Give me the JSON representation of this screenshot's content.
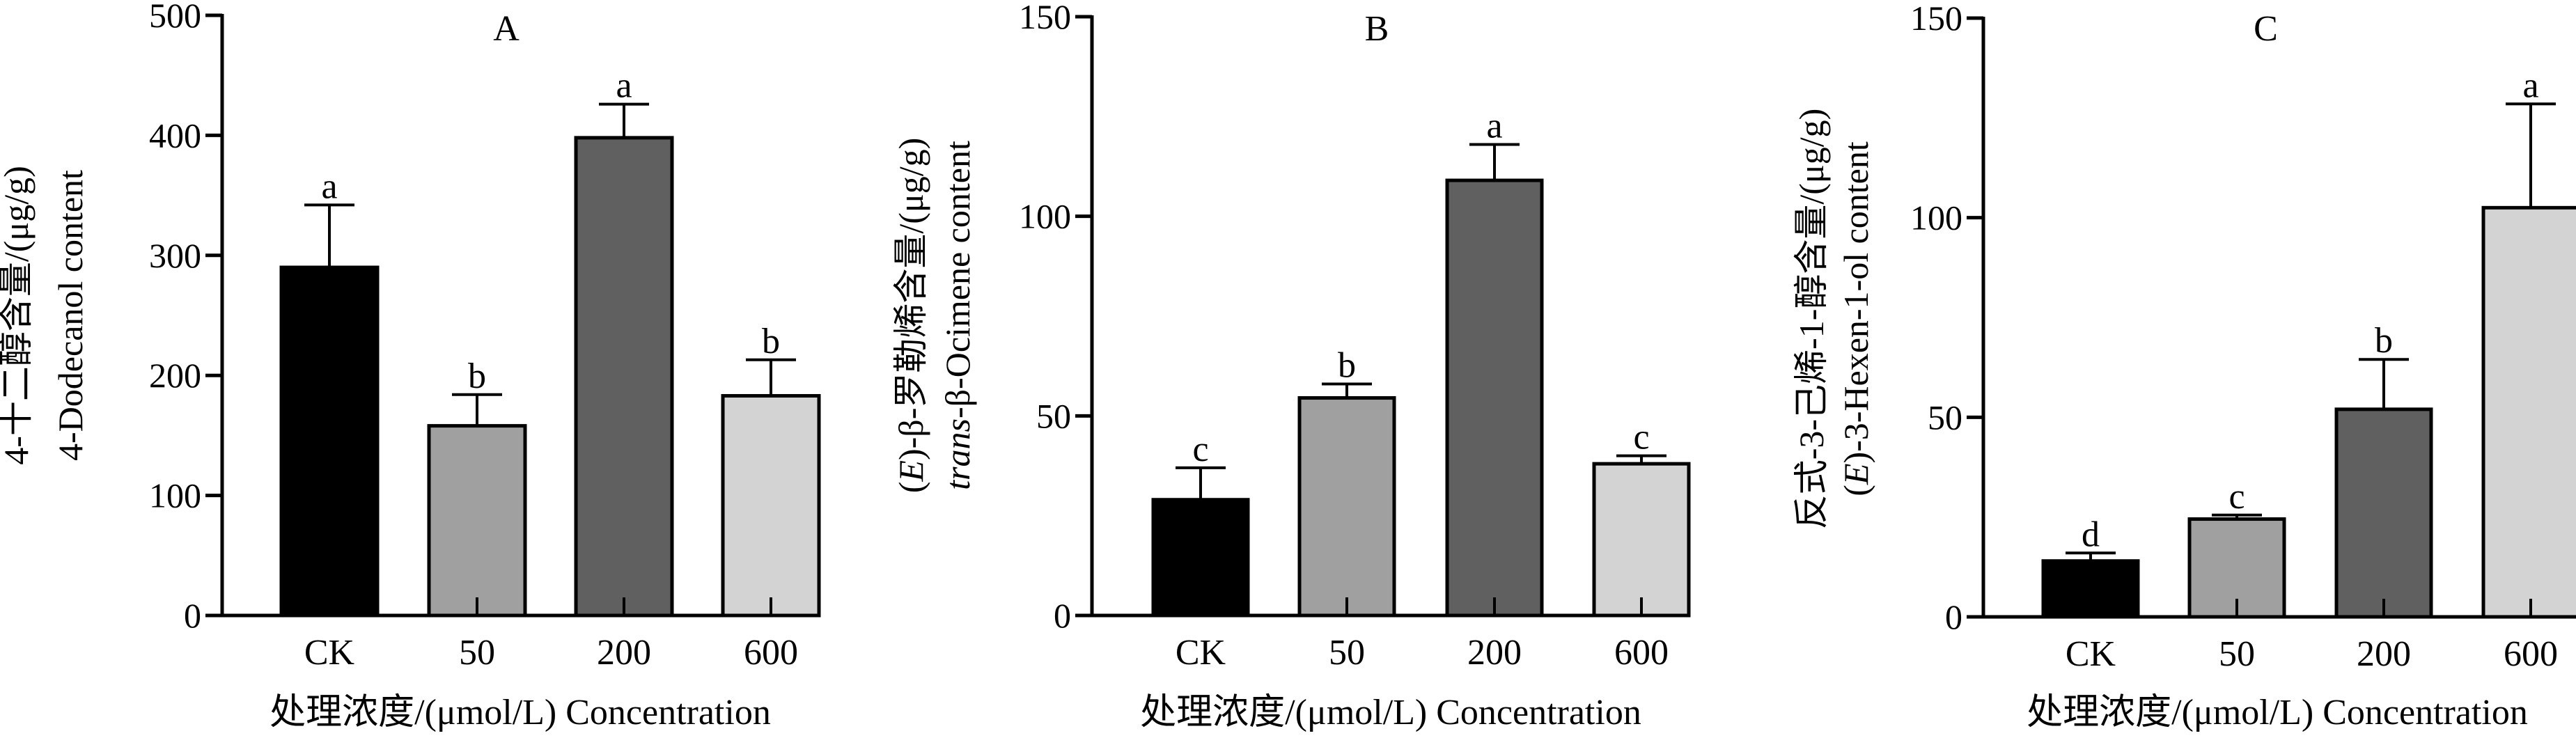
{
  "chart_data": [
    {
      "type": "bar",
      "title": "A",
      "categories": [
        "CK",
        "50",
        "200",
        "600"
      ],
      "values": [
        290,
        158,
        398,
        183
      ],
      "error_upper": [
        342,
        184,
        426,
        213
      ],
      "significance": [
        "a",
        "b",
        "a",
        "b"
      ],
      "colors": [
        "#000000",
        "#a0a0a0",
        "#606060",
        "#d3d3d3"
      ],
      "ylim": [
        0,
        500
      ],
      "yticks": [
        0,
        100,
        200,
        300,
        400,
        500
      ],
      "ylabel_lines": [
        [
          {
            "t": "4-十二醇含量/(μg/g)",
            "i": false
          }
        ],
        [
          {
            "t": "4-Dodecanol content",
            "i": false
          }
        ]
      ],
      "xlabel": "处理浓度/(μmol/L)  Concentration"
    },
    {
      "type": "bar",
      "title": "B",
      "categories": [
        "CK",
        "50",
        "200",
        "600"
      ],
      "values": [
        29,
        54.5,
        109,
        38
      ],
      "error_upper": [
        37,
        58,
        118,
        40
      ],
      "significance": [
        "c",
        "b",
        "a",
        "c"
      ],
      "colors": [
        "#000000",
        "#a0a0a0",
        "#606060",
        "#d3d3d3"
      ],
      "ylim": [
        0,
        150
      ],
      "yticks": [
        0,
        50,
        100,
        150
      ],
      "ylabel_lines": [
        [
          {
            "t": "(",
            "i": false
          },
          {
            "t": "E",
            "i": true
          },
          {
            "t": ")-β-罗勒烯含量/(μg/g)",
            "i": false
          }
        ],
        [
          {
            "t": "trans",
            "i": true
          },
          {
            "t": "-β-Ocimene content",
            "i": false
          }
        ]
      ],
      "xlabel": "处理浓度/(μmol/L)  Concentration"
    },
    {
      "type": "bar",
      "title": "C",
      "categories": [
        "CK",
        "50",
        "200",
        "600"
      ],
      "values": [
        14,
        24.5,
        52,
        102.5
      ],
      "error_upper": [
        16,
        25.5,
        64.5,
        128.5
      ],
      "significance": [
        "d",
        "c",
        "b",
        "a"
      ],
      "colors": [
        "#000000",
        "#a0a0a0",
        "#606060",
        "#d3d3d3"
      ],
      "ylim": [
        0,
        150
      ],
      "yticks": [
        0,
        50,
        100,
        150
      ],
      "ylabel_lines": [
        [
          {
            "t": "反式-3-己烯-1-醇含量/(μg/g)",
            "i": false
          }
        ],
        [
          {
            "t": "(",
            "i": false
          },
          {
            "t": "E",
            "i": true
          },
          {
            "t": ")-3-Hexen-1-ol content",
            "i": false
          }
        ]
      ],
      "xlabel": "处理浓度/(μmol/L)  Concentration"
    }
  ]
}
